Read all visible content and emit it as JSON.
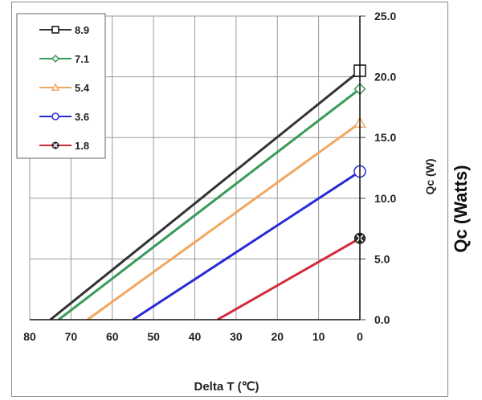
{
  "chart_data": {
    "type": "line",
    "title": "",
    "xlabel": "Delta T (℃)",
    "ylabel": "Qc (W)",
    "outer_ylabel": "Qc (Watts)",
    "xlim": [
      80,
      0
    ],
    "ylim": [
      0,
      25
    ],
    "x_ticks": [
      "80",
      "70",
      "60",
      "50",
      "40",
      "30",
      "20",
      "10",
      "0"
    ],
    "y_ticks": [
      "0.0",
      "5.0",
      "10.0",
      "15.0",
      "20.0",
      "25.0"
    ],
    "grid": true,
    "legend_position": "top-left",
    "series": [
      {
        "name": "8.9",
        "color": "#333333",
        "marker": "square",
        "x": [
          75,
          0
        ],
        "y": [
          0,
          20.5
        ]
      },
      {
        "name": "7.1",
        "color": "#3a9a5b",
        "marker": "diamond",
        "x": [
          73,
          0
        ],
        "y": [
          0,
          19
        ]
      },
      {
        "name": "5.4",
        "color": "#f0a860",
        "marker": "triangle",
        "x": [
          66,
          0
        ],
        "y": [
          0,
          16.2
        ]
      },
      {
        "name": "3.6",
        "color": "#2a2ad8",
        "marker": "circle",
        "x": [
          55,
          0
        ],
        "y": [
          0,
          12.2
        ]
      },
      {
        "name": "1.8",
        "color": "#d42a3a",
        "marker": "x-circle",
        "x": [
          34.5,
          0
        ],
        "y": [
          0,
          6.7
        ]
      }
    ]
  }
}
